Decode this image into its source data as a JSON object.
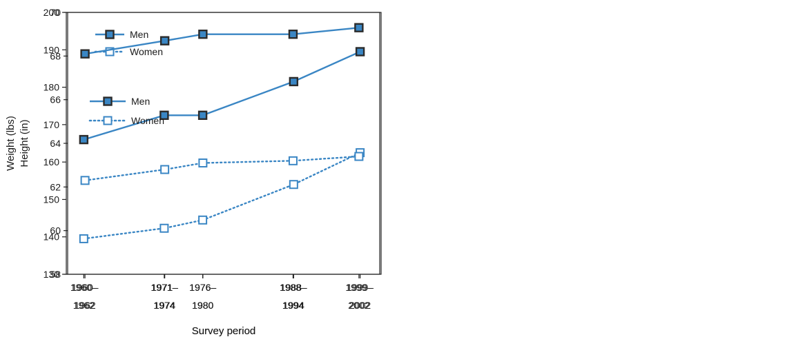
{
  "chart_data": [
    {
      "type": "line",
      "x": [
        "1960–1962",
        "1971–1974",
        "1976–1980",
        "1988–1994",
        "1999–2002"
      ],
      "x_years": [
        1961,
        1972.5,
        1978,
        1991,
        2000.5
      ],
      "x_tick_lines": [
        [
          "1960–",
          "1962"
        ],
        [
          "1971–",
          "1974"
        ],
        [
          "1976–",
          "1980"
        ],
        [
          "1988–",
          "1994"
        ],
        [
          "1999–",
          "2002"
        ]
      ],
      "xlabel": "Survey period",
      "ylabel": "Weight (lbs)",
      "ylim": [
        130,
        200
      ],
      "yticks": [
        130,
        140,
        150,
        160,
        170,
        180,
        190,
        200
      ],
      "legend_position": "top-left",
      "series": [
        {
          "name": "Men",
          "values": [
            166,
            172.5,
            172.5,
            181.5,
            189.5
          ],
          "color": "#3a86c4",
          "marker": "filled-square",
          "line": "solid"
        },
        {
          "name": "Women",
          "values": [
            139.5,
            142.3,
            144.5,
            154,
            162.5
          ],
          "color": "#3a86c4",
          "marker": "open-square",
          "line": "dotted"
        }
      ]
    },
    {
      "type": "line",
      "x": [
        "1960–1962",
        "1971–1974",
        "1976–1980",
        "1988–1994",
        "1999–2002"
      ],
      "x_years": [
        1961,
        1972.5,
        1978,
        1991,
        2000.5
      ],
      "x_tick_lines": [
        [
          "1960–",
          "1962"
        ],
        [
          "1971–",
          "1974"
        ],
        [
          "1976–",
          "1980"
        ],
        [
          "1988–",
          "1994"
        ],
        [
          "1999–",
          "2002"
        ]
      ],
      "xlabel": "Survey period",
      "ylabel": "Height (in)",
      "ylim": [
        58,
        70
      ],
      "yticks": [
        58,
        60,
        62,
        64,
        66,
        68,
        70
      ],
      "legend_position": "middle-left",
      "series": [
        {
          "name": "Men",
          "values": [
            68.1,
            68.7,
            69.0,
            69.0,
            69.3
          ],
          "color": "#3a86c4",
          "marker": "filled-square",
          "line": "solid"
        },
        {
          "name": "Women",
          "values": [
            62.3,
            62.8,
            63.1,
            63.2,
            63.4
          ],
          "color": "#3a86c4",
          "marker": "open-square",
          "line": "dotted"
        }
      ]
    }
  ]
}
